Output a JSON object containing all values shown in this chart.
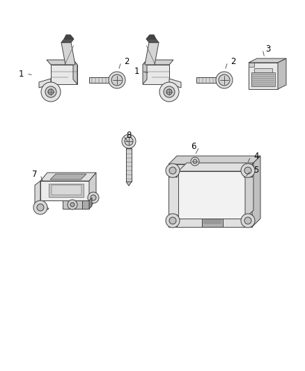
{
  "background_color": "#ffffff",
  "line_color": "#404040",
  "label_color": "#000000",
  "figure_width": 4.38,
  "figure_height": 5.33,
  "dpi": 100,
  "font_size": 8.5,
  "lw": 0.7
}
